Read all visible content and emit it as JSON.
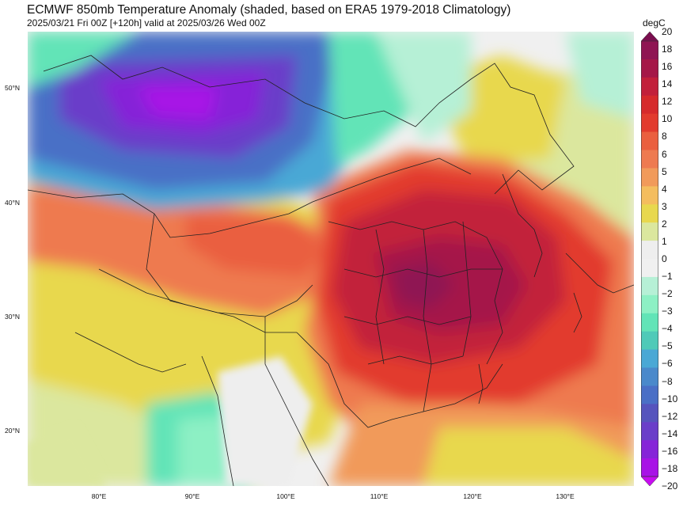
{
  "header": {
    "title": "ECMWF 850mb Temperature Anomaly (shaded, based on ERA5 1979-2018 Climatology)",
    "subtitle": "2025/03/21 Fri 00Z [+120h] valid at 2025/03/26 Wed 00Z"
  },
  "map": {
    "lat_labels": [
      "50°N",
      "40°N",
      "30°N",
      "20°N"
    ],
    "lon_labels": [
      "80°E",
      "90°E",
      "100°E",
      "110°E",
      "120°E",
      "130°E"
    ]
  },
  "colorbar": {
    "unit": "degC",
    "levels": [
      "20",
      "18",
      "16",
      "14",
      "12",
      "10",
      "8",
      "6",
      "5",
      "4",
      "3",
      "2",
      "1",
      "0",
      "−1",
      "−2",
      "−3",
      "−4",
      "−5",
      "−6",
      "−8",
      "−10",
      "−12",
      "−14",
      "−16",
      "−18",
      "−20"
    ],
    "colors": [
      "#7a0e4f",
      "#8f1553",
      "#a51848",
      "#c2203b",
      "#d62a2c",
      "#e23b2e",
      "#ea5f3f",
      "#ee7a50",
      "#f19a5a",
      "#f4bd5e",
      "#e8d84e",
      "#dbe79e",
      "#eeeeee",
      "#f0f0f0",
      "#b6f0d6",
      "#8df0c4",
      "#62e4b7",
      "#4fcab8",
      "#4aa8d5",
      "#4a89cb",
      "#4a6fc6",
      "#5654bd",
      "#6a3ec9",
      "#8624d8",
      "#a812e6",
      "#c70cf0"
    ]
  }
}
